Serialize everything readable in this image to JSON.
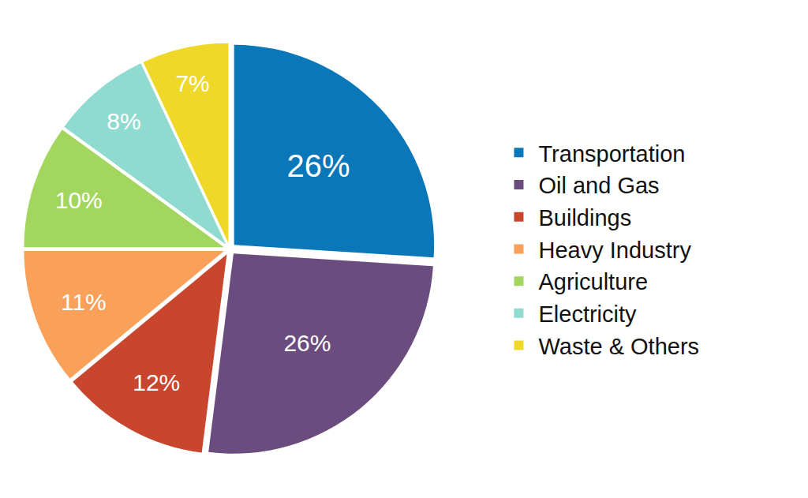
{
  "chart_data": {
    "type": "pie",
    "categories": [
      "Transportation",
      "Oil and Gas",
      "Buildings",
      "Heavy Industry",
      "Agriculture",
      "Electricity",
      "Waste & Others"
    ],
    "values": [
      26,
      26,
      12,
      11,
      10,
      8,
      7
    ],
    "value_labels": [
      "26%",
      "26%",
      "12%",
      "11%",
      "10%",
      "8%",
      "7%"
    ],
    "colors": [
      "#0a77b8",
      "#6b4c7e",
      "#c8462e",
      "#f9a05a",
      "#a3d65f",
      "#8fdbd0",
      "#f0d828"
    ],
    "data_labels": true,
    "legend": "right"
  }
}
